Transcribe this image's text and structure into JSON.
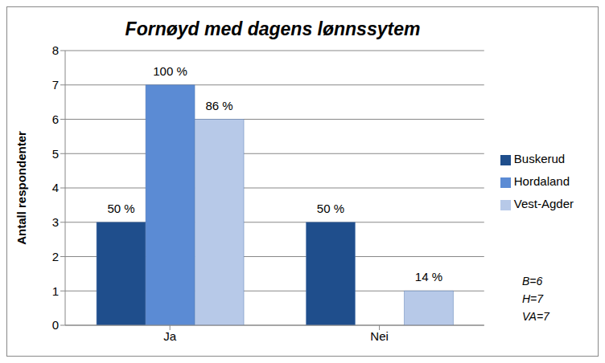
{
  "chart_data": {
    "type": "bar",
    "title": "Fornøyd med dagens lønnssytem",
    "y_label": "Antall respondenter",
    "categories": [
      "Ja",
      "Nei"
    ],
    "series": [
      {
        "name": "Buskerud",
        "color": "#1f4e8c",
        "values": [
          3,
          3
        ],
        "percent_labels": [
          "50 %",
          "50 %"
        ]
      },
      {
        "name": "Hordaland",
        "color": "#5b8bd4",
        "values": [
          7,
          0
        ],
        "percent_labels": [
          "100 %",
          null
        ]
      },
      {
        "name": "Vest-Agder",
        "color": "#b7c9e8",
        "values": [
          6,
          1
        ],
        "percent_labels": [
          "86 %",
          "14 %"
        ]
      }
    ],
    "ylim": [
      0,
      8
    ],
    "yticks": [
      0,
      1,
      2,
      3,
      4,
      5,
      6,
      7,
      8
    ],
    "grid": true,
    "legend": "right",
    "data_labels": true,
    "annotations": [
      "B=6",
      "H=7",
      "VA=7"
    ]
  }
}
